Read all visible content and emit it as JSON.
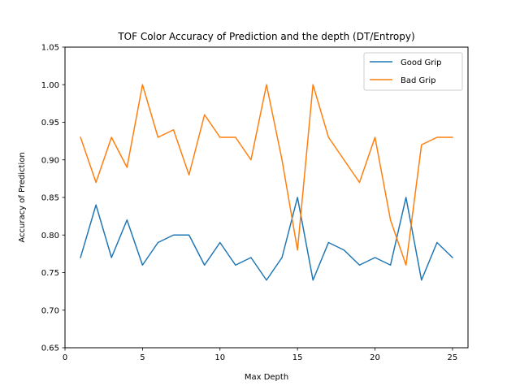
{
  "chart_data": {
    "type": "line",
    "title": "TOF Color Accuracy of Prediction and the depth (DT/Entropy)",
    "xlabel": "Max Depth",
    "ylabel": "Accuracy of Prediction",
    "xlim": [
      0,
      26
    ],
    "ylim": [
      0.65,
      1.05
    ],
    "xticks": [
      0,
      5,
      10,
      15,
      20,
      25
    ],
    "yticks": [
      0.65,
      0.7,
      0.75,
      0.8,
      0.85,
      0.9,
      0.95,
      1.0,
      1.05
    ],
    "grid": false,
    "legend_position": "top-right",
    "x": [
      1,
      2,
      3,
      4,
      5,
      6,
      7,
      8,
      9,
      10,
      11,
      12,
      13,
      14,
      15,
      16,
      17,
      18,
      19,
      20,
      21,
      22,
      23,
      24,
      25
    ],
    "series": [
      {
        "name": "Good Grip",
        "color": "#1f77b4",
        "values": [
          0.77,
          0.84,
          0.77,
          0.82,
          0.76,
          0.79,
          0.8,
          0.8,
          0.76,
          0.79,
          0.76,
          0.77,
          0.74,
          0.77,
          0.85,
          0.74,
          0.79,
          0.78,
          0.76,
          0.77,
          0.76,
          0.85,
          0.74,
          0.79,
          0.77
        ]
      },
      {
        "name": "Bad Grip",
        "color": "#ff7f0e",
        "values": [
          0.93,
          0.87,
          0.93,
          0.89,
          1.0,
          0.93,
          0.94,
          0.88,
          0.96,
          0.93,
          0.93,
          0.9,
          1.0,
          0.9,
          0.78,
          1.0,
          0.93,
          0.9,
          0.87,
          0.93,
          0.82,
          0.76,
          0.92,
          0.93,
          0.93
        ]
      }
    ]
  }
}
